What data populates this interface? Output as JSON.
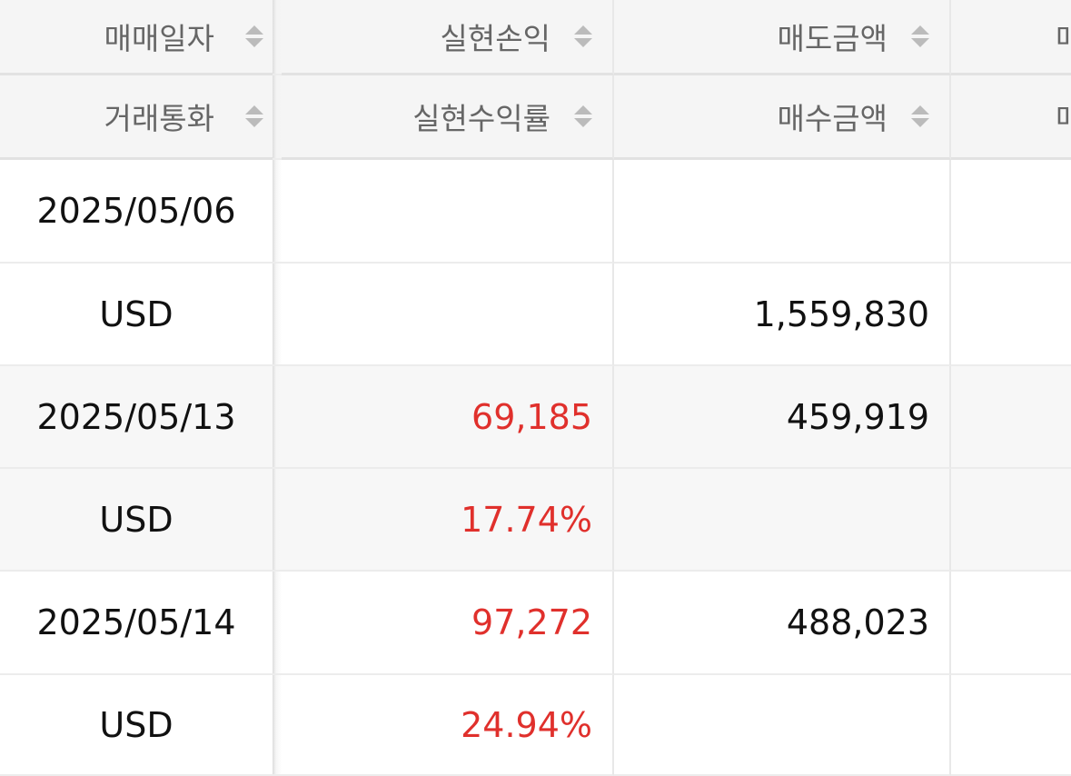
{
  "header": {
    "row1": [
      "매매일자",
      "실현손익",
      "매도금액",
      "매"
    ],
    "row2": [
      "거래통화",
      "실현수익률",
      "매수금액",
      "매"
    ]
  },
  "rows": [
    {
      "date": "2025/05/06",
      "currency": "USD",
      "realized_pl": "",
      "realized_return": "",
      "sell_amount": "",
      "buy_amount": "1,559,830"
    },
    {
      "date": "2025/05/13",
      "currency": "USD",
      "realized_pl": "69,185",
      "realized_return": "17.74%",
      "sell_amount": "459,919",
      "buy_amount": ""
    },
    {
      "date": "2025/05/14",
      "currency": "USD",
      "realized_pl": "97,272",
      "realized_return": "24.94%",
      "sell_amount": "488,023",
      "buy_amount": ""
    }
  ],
  "colors": {
    "profit": "#e0302c",
    "header_text": "#666666",
    "header_bg": "#f5f5f5"
  },
  "icons": {
    "sort": "sort-up-down-icon"
  }
}
